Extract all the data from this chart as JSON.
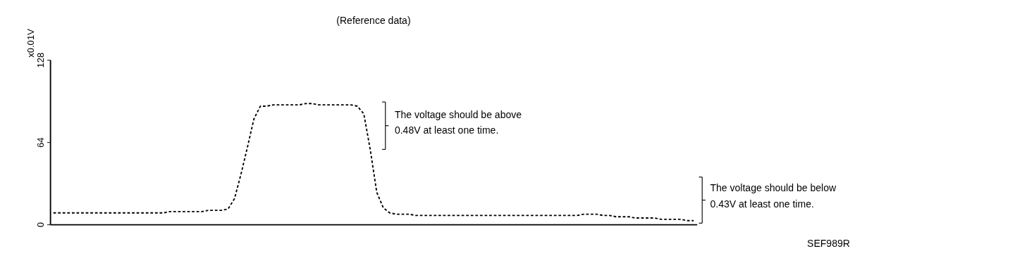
{
  "chart_data": {
    "type": "line",
    "title": "(Reference data)",
    "ylabel": "x0.01V",
    "categories": [
      null,
      null,
      null,
      null,
      null,
      null,
      null,
      null,
      null,
      null,
      null,
      null,
      null,
      null,
      null,
      null,
      null,
      null,
      null,
      null,
      null,
      null,
      null,
      null,
      null,
      null,
      null,
      null,
      null,
      null,
      null,
      null,
      null,
      null,
      null,
      null,
      null,
      null,
      null,
      null,
      null,
      null,
      null,
      null,
      null,
      null,
      null,
      null,
      null,
      null,
      null,
      null,
      null,
      null,
      null,
      null,
      null,
      null,
      null,
      null,
      null,
      null,
      null,
      null,
      null,
      null,
      null,
      null,
      null,
      null,
      null,
      null,
      null,
      null,
      null,
      null,
      null,
      null,
      null,
      null,
      null,
      null,
      null,
      null,
      null,
      null,
      null,
      null,
      null,
      null,
      null,
      null,
      null,
      null,
      null,
      null,
      null,
      null,
      null,
      null
    ],
    "series": [
      {
        "color": "#000000",
        "values": [
          9,
          9,
          9,
          9,
          9,
          9,
          9,
          9,
          9,
          9,
          9,
          9,
          9,
          9,
          9,
          9,
          9,
          9,
          10,
          10,
          10,
          10,
          10,
          10,
          11,
          11,
          11,
          12,
          20,
          39,
          60,
          82,
          92,
          92,
          93,
          93,
          93,
          93,
          93,
          94,
          94,
          93,
          93,
          93,
          93,
          93,
          93,
          92,
          86,
          58,
          25,
          13,
          9,
          8,
          8,
          8,
          7,
          7,
          7,
          7,
          7,
          7,
          7,
          7,
          7,
          7,
          7,
          7,
          7,
          7,
          7,
          7,
          7,
          7,
          7,
          7,
          7,
          7,
          7,
          7,
          7,
          7,
          8,
          8,
          8,
          7,
          7,
          6,
          6,
          6,
          5,
          5,
          5,
          5,
          4,
          4,
          4,
          4,
          3,
          3
        ]
      }
    ],
    "ylim": [
      0,
      128
    ],
    "yticks": [
      0,
      64,
      128
    ],
    "grid": false,
    "marker": "none",
    "line_style": "dashed",
    "tick_labels": "y",
    "annotations": [
      "The voltage should be above\n0.48V at least one time.",
      "The voltage should be below\n0.43V at least one time.",
      "SEF989R"
    ]
  }
}
